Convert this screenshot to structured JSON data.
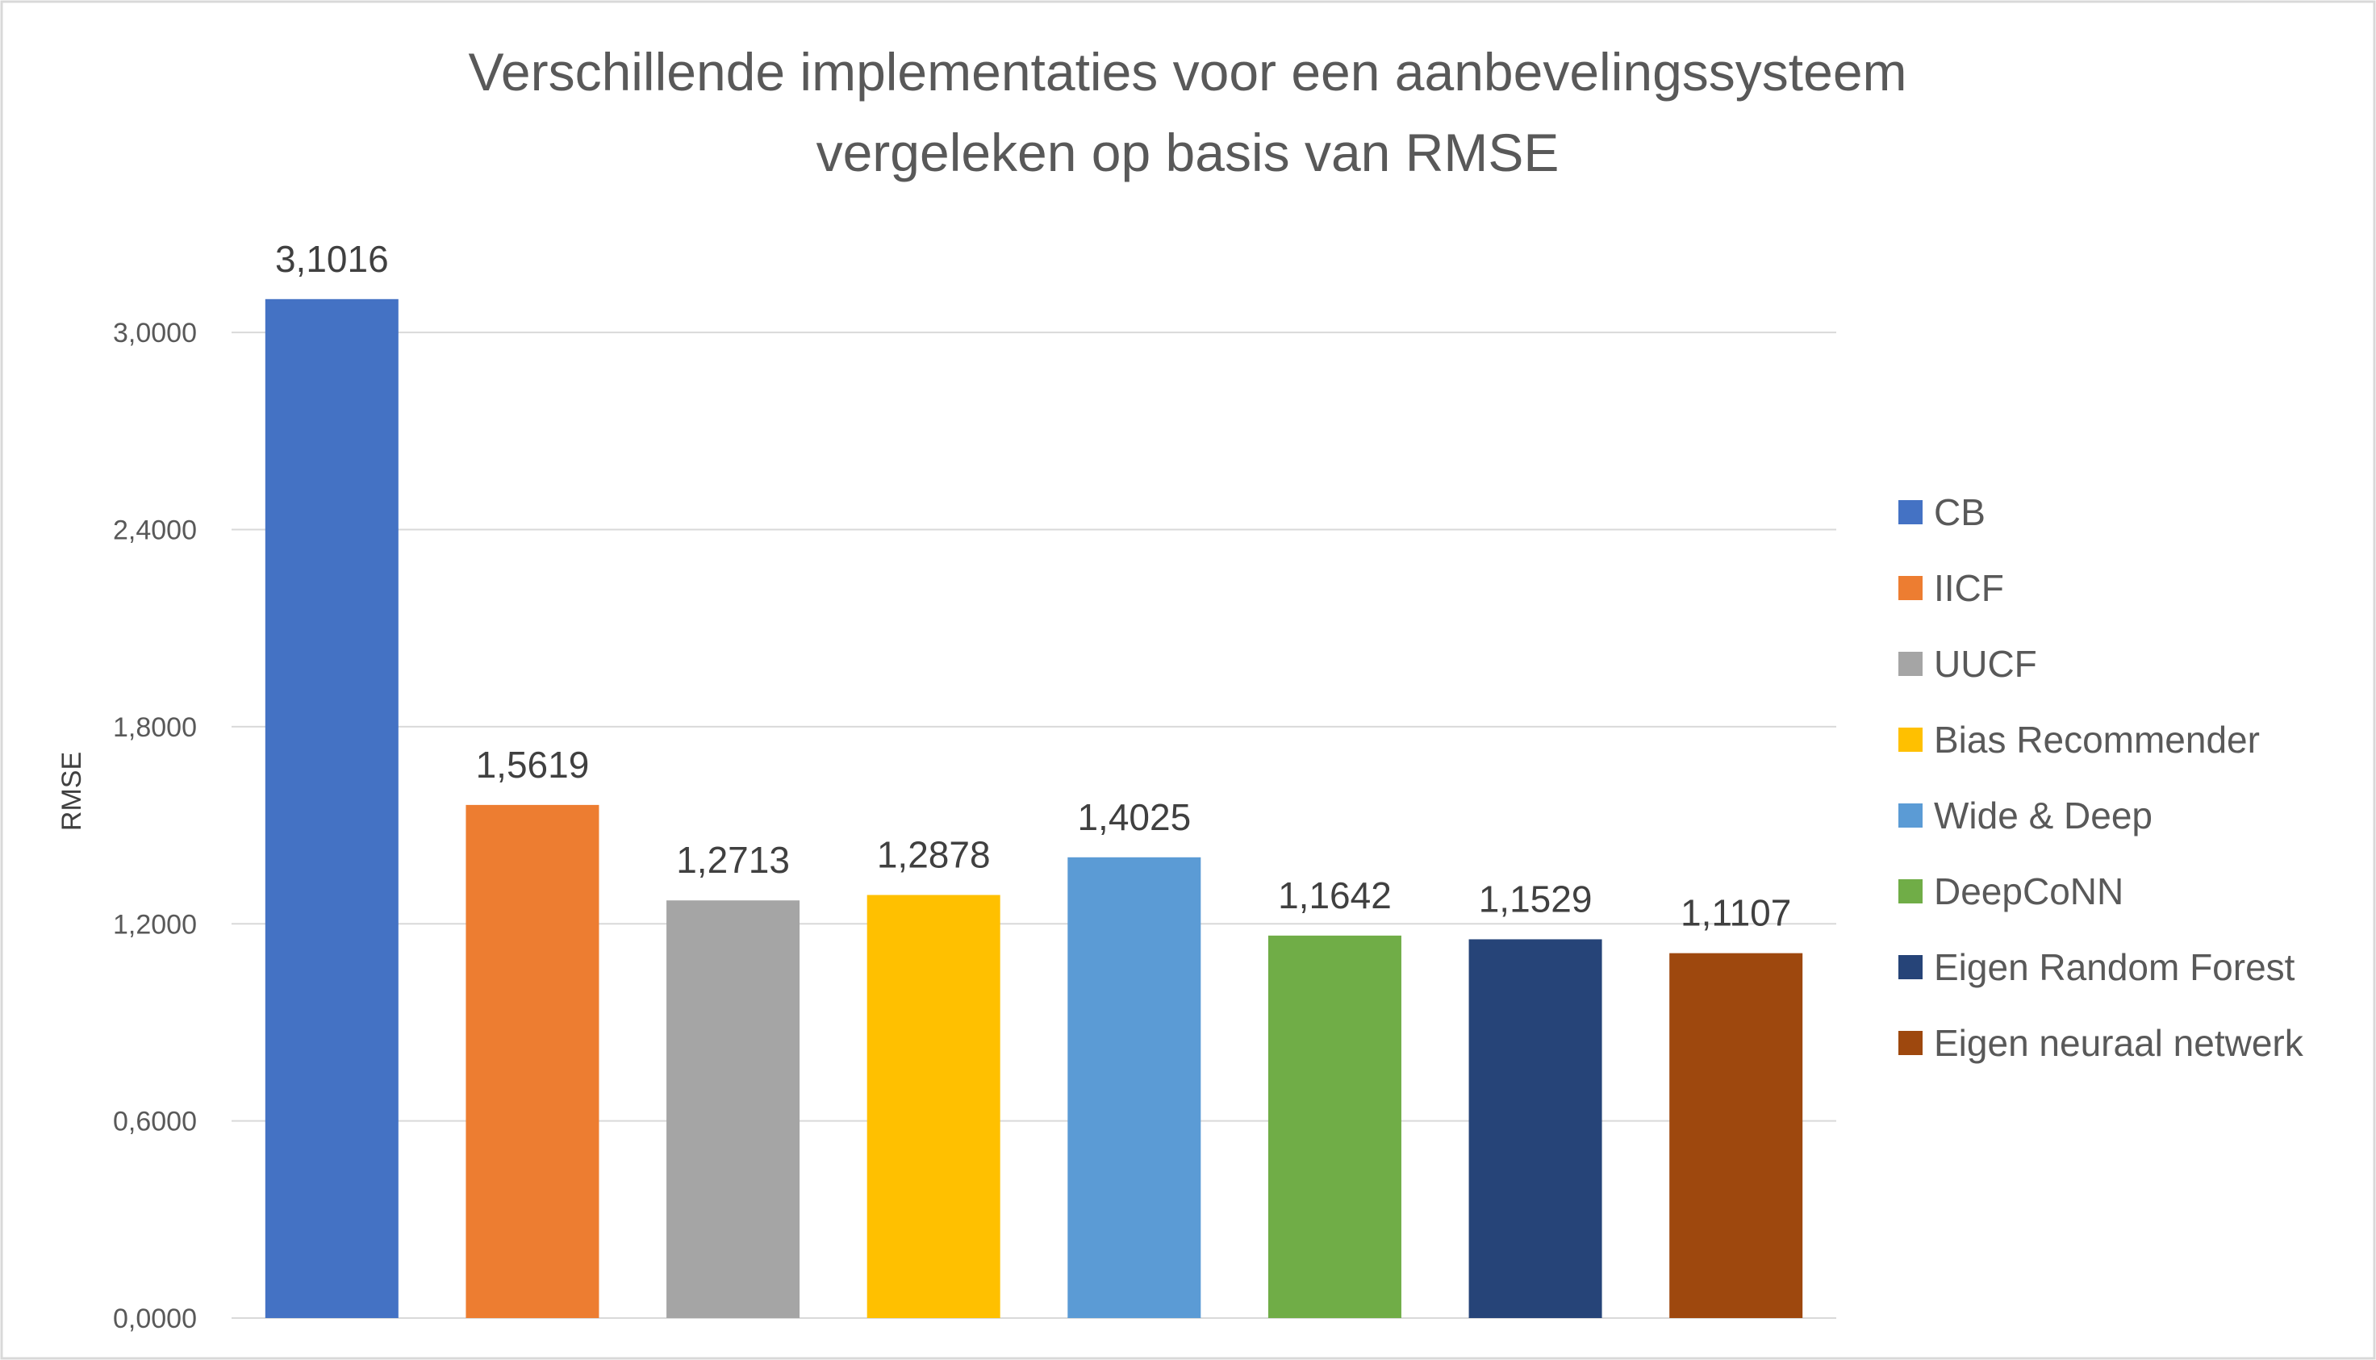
{
  "chart_data": {
    "type": "bar",
    "title_lines": [
      "Verschillende implementaties voor een aanbevelingssysteem",
      "vergeleken op basis van RMSE"
    ],
    "xlabel": "",
    "ylabel": "RMSE",
    "ylim": [
      0,
      3.3
    ],
    "yticks": [
      0,
      0.6,
      1.2,
      1.8,
      2.4,
      3.0
    ],
    "ytick_labels": [
      "0,0000",
      "0,6000",
      "1,2000",
      "1,8000",
      "2,4000",
      "3,0000"
    ],
    "grid": true,
    "legend_position": "right",
    "categories": [
      "CB",
      "IICF",
      "UUCF",
      "Bias Recommender",
      "Wide & Deep",
      "DeepCoNN",
      "Eigen Random Forest",
      "Eigen neuraal netwerk"
    ],
    "values": [
      3.1016,
      1.5619,
      1.2713,
      1.2878,
      1.4025,
      1.1642,
      1.1529,
      1.1107
    ],
    "value_labels": [
      "3,1016",
      "1,5619",
      "1,2713",
      "1,2878",
      "1,4025",
      "1,1642",
      "1,1529",
      "1,1107"
    ],
    "colors": [
      "#4472c4",
      "#ed7d31",
      "#a5a5a5",
      "#ffc000",
      "#5b9bd5",
      "#70ad47",
      "#264478",
      "#9e480e"
    ]
  }
}
